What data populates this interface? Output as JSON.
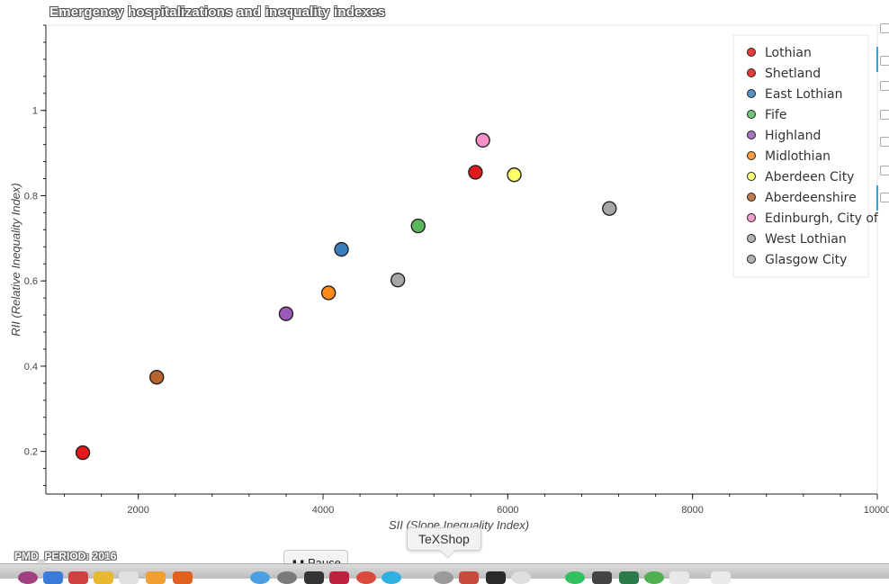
{
  "chart_data": {
    "type": "scatter",
    "title": "Emergency hospitalizations and inequality indexes",
    "xlabel": "SII (Slope Inequality Index)",
    "ylabel": "RII (Relative Inequality Index)",
    "xlim": [
      1000,
      10000
    ],
    "ylim": [
      0.1,
      1.2
    ],
    "xticks": [
      2000,
      4000,
      6000,
      8000,
      10000
    ],
    "yticks": [
      0.2,
      0.4,
      0.6,
      0.8,
      1
    ],
    "grid": false,
    "legend_position": "top-right",
    "points": [
      {
        "name": "Lothian",
        "x": 5650,
        "y": 0.855,
        "color": "#e31a1c"
      },
      {
        "name": "Shetland",
        "x": 1400,
        "y": 0.197,
        "color": "#e31a1c"
      },
      {
        "name": "East Lothian",
        "x": 4200,
        "y": 0.674,
        "color": "#3a7fbd"
      },
      {
        "name": "Fife",
        "x": 5030,
        "y": 0.729,
        "color": "#5cb85c"
      },
      {
        "name": "Highland",
        "x": 3600,
        "y": 0.523,
        "color": "#9b59b6"
      },
      {
        "name": "Midlothian",
        "x": 4060,
        "y": 0.572,
        "color": "#ff8c1a"
      },
      {
        "name": "Aberdeen City",
        "x": 6070,
        "y": 0.849,
        "color": "#ffff66"
      },
      {
        "name": "Aberdeenshire",
        "x": 2200,
        "y": 0.374,
        "color": "#b5652d"
      },
      {
        "name": "Edinburgh, City of",
        "x": 5730,
        "y": 0.93,
        "color": "#f78fc8"
      },
      {
        "name": "West Lothian",
        "x": 4810,
        "y": 0.602,
        "color": "#a6a6a6"
      },
      {
        "name": "Glasgow City",
        "x": 7100,
        "y": 0.77,
        "color": "#a6a6a6"
      }
    ]
  },
  "footer": {
    "period_label": "PMD_PERIOD: 2016",
    "pause_label": "Pause",
    "tooltip": "TeXShop"
  }
}
